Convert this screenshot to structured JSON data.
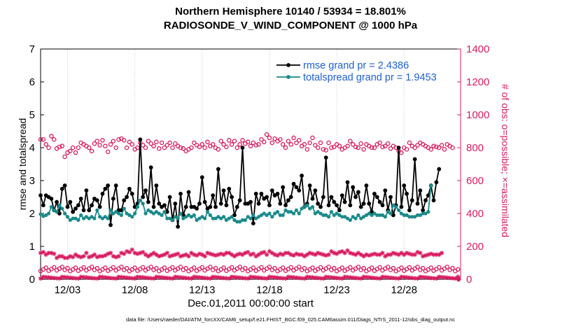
{
  "chart_data": {
    "type": "line",
    "title_line1": "Northern Hemisphere 10140 / 53934 = 18.801%",
    "title_line2": "RADIOSONDE_V_WIND_COMPONENT @ 1000 hPa",
    "xlabel": "Dec.01,2011 00:00:00 start",
    "ylabel_left": "rmse and totalspread",
    "ylabel_right": "# of obs: o=possible; ×=assimilated",
    "footer": "data file: /Users/raeder/DAI/ATM_forcXX/CAM6_setup/f.e21.FHIST_BGC.f09_025.CAM6assim.011/Diags_NTrS_2011-12/obs_diag_output.nc",
    "xlim": [
      1,
      32.2
    ],
    "xticks": [
      3,
      8,
      13,
      18,
      23,
      28
    ],
    "xtick_labels": [
      "12/03",
      "12/08",
      "12/13",
      "12/18",
      "12/23",
      "12/28"
    ],
    "ylim_left": [
      0,
      7
    ],
    "yticks_left": [
      "0",
      "1",
      "2",
      "3",
      "4",
      "5",
      "6",
      "7"
    ],
    "ylim_right": [
      0,
      1400
    ],
    "yticks_right": [
      "0",
      "200",
      "400",
      "600",
      "800",
      "1000",
      "1200",
      "1400"
    ],
    "colors": {
      "rmse": "#000000",
      "spread": "#1a8a8a",
      "obs": "#d81b60",
      "legend_text": "#1f5fd1"
    },
    "series": [
      {
        "name": "rmse grand pr = 2.4386",
        "axis": "left",
        "values": [
          2.55,
          2.25,
          2.55,
          2.5,
          2.45,
          2.1,
          2.35,
          2.0,
          2.75,
          2.85,
          2.2,
          2.35,
          2.05,
          2.15,
          2.25,
          2.45,
          2.1,
          2.7,
          2.1,
          2.25,
          2.45,
          2.4,
          2.2,
          2.6,
          2.75,
          2.85,
          1.65,
          2.45,
          2.85,
          2.1,
          2.1,
          2.4,
          2.5,
          2.75,
          2.6,
          2.2,
          2.3,
          4.25,
          2.5,
          2.7,
          2.35,
          3.4,
          2.2,
          2.85,
          2.3,
          2.2,
          2.25,
          2.05,
          2.5,
          1.8,
          2.3,
          1.6,
          2.6,
          1.95,
          2.2,
          2.65,
          2.2,
          2.2,
          2.15,
          2.3,
          3.1,
          2.35,
          2.15,
          2.2,
          2.55,
          2.2,
          3.35,
          2.3,
          2.7,
          2.25,
          2.75,
          2.5,
          1.95,
          2.2,
          2.4,
          4.0,
          2.3,
          2.3,
          2.35,
          1.7,
          2.6,
          2.3,
          2.6,
          2.45,
          2.5,
          2.25,
          2.7,
          2.55,
          2.6,
          2.3,
          2.8,
          2.25,
          2.4,
          2.5,
          2.9,
          2.8,
          2.7,
          3.15,
          2.2,
          2.3,
          2.85,
          2.45,
          2.7,
          2.3,
          2.2,
          2.5,
          3.7,
          2.25,
          2.5,
          2.35,
          2.25,
          2.1,
          2.55,
          2.35,
          2.95,
          2.25,
          2.8,
          2.5,
          2.65,
          2.2,
          2.3,
          2.85,
          2.3,
          2.05,
          2.6,
          2.5,
          2.35,
          2.25,
          2.7,
          2.1,
          2.5,
          1.95,
          2.25,
          4.0,
          2.2,
          2.85,
          2.6,
          2.1,
          2.4,
          3.65,
          2.3,
          2.7,
          2.1,
          2.4,
          2.55,
          2.85,
          2.4,
          2.95,
          3.35
        ]
      },
      {
        "name": "totalspread grand pr = 1.9453",
        "axis": "left",
        "values": [
          1.98,
          1.92,
          1.95,
          2.0,
          2.2,
          2.1,
          2.05,
          2.25,
          2.15,
          2.0,
          1.9,
          1.8,
          1.85,
          1.85,
          1.8,
          1.95,
          1.85,
          1.9,
          1.85,
          1.9,
          1.85,
          2.1,
          1.9,
          1.85,
          1.9,
          1.85,
          2.1,
          2.0,
          2.05,
          2.0,
          1.95,
          2.15,
          2.0,
          1.95,
          1.9,
          2.0,
          2.2,
          2.4,
          2.3,
          2.0,
          2.1,
          2.05,
          2.0,
          2.05,
          2.0,
          1.95,
          2.05,
          1.85,
          1.85,
          1.8,
          1.9,
          1.85,
          2.0,
          1.85,
          1.9,
          1.95,
          1.9,
          1.95,
          1.8,
          1.85,
          1.9,
          1.85,
          2.05,
          1.95,
          1.85,
          1.85,
          1.9,
          1.85,
          1.9,
          1.8,
          1.85,
          1.9,
          1.8,
          1.75,
          1.75,
          1.8,
          1.8,
          1.9,
          1.85,
          1.95,
          1.85,
          1.9,
          1.95,
          2.0,
          1.95,
          2.0,
          1.9,
          2.0,
          2.05,
          1.95,
          1.95,
          2.1,
          2.05,
          2.05,
          2.0,
          2.1,
          2.0,
          2.15,
          2.2,
          2.25,
          2.15,
          2.2,
          2.0,
          2.05,
          2.0,
          1.95,
          1.95,
          1.9,
          2.05,
          1.95,
          2.0,
          1.95,
          1.9,
          1.9,
          1.85,
          1.8,
          1.9,
          1.85,
          1.95,
          1.85,
          1.9,
          1.95,
          2.0,
          1.95,
          2.0,
          1.95,
          1.95,
          1.95,
          1.9,
          2.05,
          2.0,
          2.25,
          2.2,
          2.1,
          2.0,
          1.95,
          1.95,
          1.9,
          1.9,
          1.9,
          1.95,
          1.95,
          2.0,
          2.0,
          2.05,
          2.85
        ]
      },
      {
        "name": "possible obs",
        "axis": "right",
        "marker": "circle",
        "values": [
          850,
          850,
          820,
          800,
          870,
          850,
          795,
          805,
          810,
          745,
          770,
          780,
          800,
          770,
          800,
          830,
          820,
          810,
          800,
          780,
          825,
          840,
          815,
          845,
          810,
          775,
          820,
          840,
          800,
          850,
          855,
          845,
          800,
          835,
          820,
          790,
          800,
          830,
          815,
          800,
          840,
          825,
          810,
          835,
          795,
          830,
          800,
          815,
          830,
          800,
          825,
          810,
          800,
          795,
          780,
          790,
          800,
          830,
          815,
          805,
          820,
          800,
          835,
          810,
          820,
          800,
          790,
          840,
          820,
          805,
          845,
          820,
          840,
          800,
          820,
          845,
          825,
          835,
          810,
          830,
          815,
          820,
          850,
          835,
          880,
          860,
          830,
          855,
          840,
          850,
          820,
          800,
          840,
          820,
          860,
          830,
          845,
          810,
          820,
          790,
          830,
          860,
          815,
          800,
          830,
          790,
          785,
          830,
          800,
          805,
          820,
          810,
          790,
          800,
          810,
          840,
          820,
          805,
          800,
          825,
          790,
          820,
          810,
          800,
          800,
          820,
          830,
          805,
          810,
          825,
          795,
          810,
          800,
          780,
          770,
          800,
          790,
          830,
          810,
          800,
          815,
          830,
          820,
          810,
          800,
          790,
          810,
          805,
          800,
          815,
          790,
          820,
          810,
          800
        ]
      },
      {
        "name": "assimilated obs",
        "axis": "right",
        "marker": "star",
        "values": [
          160,
          165,
          150,
          160,
          160,
          155,
          130,
          140,
          140,
          130,
          130,
          140,
          135,
          150,
          140,
          135,
          140,
          160,
          135,
          140,
          150,
          135,
          140,
          140,
          145,
          155,
          160,
          140,
          135,
          140,
          160,
          155,
          170,
          165,
          180,
          160,
          155,
          160,
          165,
          150,
          140,
          150,
          160,
          150,
          140,
          145,
          150,
          160,
          140,
          145,
          150,
          155,
          140,
          145,
          150,
          140,
          160,
          150,
          145,
          155,
          150,
          140,
          160,
          155,
          150,
          145,
          150,
          155,
          150,
          160,
          160,
          150,
          140,
          150,
          155,
          150,
          160,
          165,
          150,
          155,
          140,
          150,
          160,
          165,
          150,
          170,
          160,
          150,
          145,
          155,
          150,
          160,
          160,
          150,
          145,
          155,
          150,
          150,
          140,
          150,
          160,
          155,
          150,
          160,
          155,
          150,
          145,
          150,
          170,
          160,
          155,
          165,
          170,
          160,
          175,
          160,
          155,
          150,
          160,
          150,
          140,
          150,
          145,
          150,
          155,
          150,
          150,
          160,
          140,
          150,
          150,
          160,
          155,
          150,
          160,
          150,
          160,
          155,
          150,
          150,
          165,
          160,
          140,
          145,
          150,
          155,
          150,
          150,
          150,
          160
        ]
      }
    ],
    "possible_low_row": {
      "axis": "right",
      "marker": "circle",
      "value_range": [
        50,
        75
      ]
    },
    "assimilated_low_row": {
      "axis": "right",
      "marker": "star",
      "value_range": [
        5,
        15
      ]
    }
  }
}
